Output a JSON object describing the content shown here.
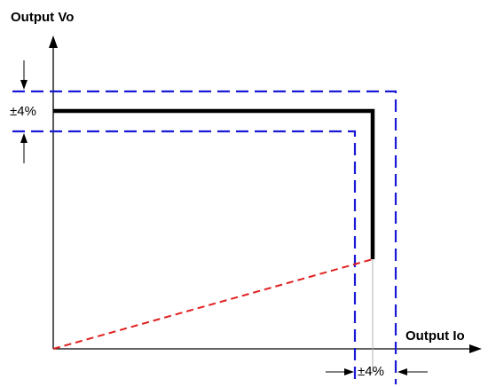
{
  "axes": {
    "y_title": "Output Vo",
    "x_title": "Output Io"
  },
  "tolerances": {
    "voltage": "±4%",
    "current": "±4%"
  },
  "colors": {
    "axis": "#000000",
    "characteristic": "#000000",
    "tolerance_band": "#1a1ad6",
    "load_line": "#e02020",
    "guide": "#b0b0b0"
  },
  "icons": [
    "arrow-up-icon",
    "arrow-right-icon",
    "arrow-down-icon",
    "arrow-left-icon"
  ]
}
